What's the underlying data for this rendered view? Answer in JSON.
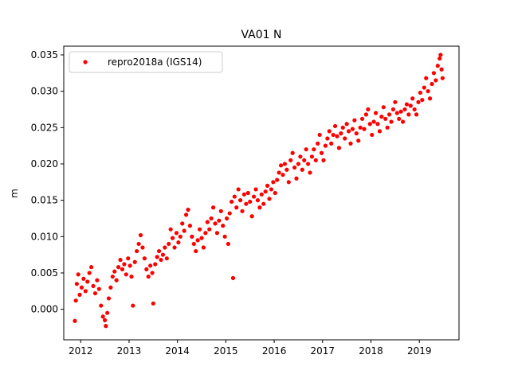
{
  "chart_data": {
    "type": "scatter",
    "title": "VA01 N",
    "xlabel": "",
    "ylabel": "m",
    "xlim": [
      2011.65,
      2019.82
    ],
    "ylim": [
      -0.0042,
      0.0362
    ],
    "xticks": [
      2012,
      2013,
      2014,
      2015,
      2016,
      2017,
      2018,
      2019
    ],
    "xtick_labels": [
      "2012",
      "2013",
      "2014",
      "2015",
      "2016",
      "2017",
      "2018",
      "2019"
    ],
    "yticks": [
      0.0,
      0.005,
      0.01,
      0.015,
      0.02,
      0.025,
      0.03,
      0.035
    ],
    "ytick_labels": [
      "0.000",
      "0.005",
      "0.010",
      "0.015",
      "0.020",
      "0.025",
      "0.030",
      "0.035"
    ],
    "grid": false,
    "legend": {
      "location": "upper-left"
    },
    "series": [
      {
        "name": "repro2018a (IGS14)",
        "color": "#ff0000",
        "marker": "circle",
        "points": [
          [
            2011.88,
            -0.0016
          ],
          [
            2011.9,
            0.0012
          ],
          [
            2011.92,
            0.0035
          ],
          [
            2011.95,
            0.0048
          ],
          [
            2011.98,
            0.002
          ],
          [
            2012.02,
            0.003
          ],
          [
            2012.06,
            0.0042
          ],
          [
            2012.1,
            0.0025
          ],
          [
            2012.14,
            0.0038
          ],
          [
            2012.18,
            0.005
          ],
          [
            2012.22,
            0.0058
          ],
          [
            2012.26,
            0.0032
          ],
          [
            2012.3,
            0.0022
          ],
          [
            2012.34,
            0.004
          ],
          [
            2012.38,
            0.0028
          ],
          [
            2012.42,
            0.0005
          ],
          [
            2012.46,
            -0.001
          ],
          [
            2012.5,
            -0.0015
          ],
          [
            2012.52,
            -0.0023
          ],
          [
            2012.55,
            -0.0005
          ],
          [
            2012.58,
            0.0015
          ],
          [
            2012.62,
            0.003
          ],
          [
            2012.66,
            0.0045
          ],
          [
            2012.7,
            0.0052
          ],
          [
            2012.74,
            0.004
          ],
          [
            2012.78,
            0.0058
          ],
          [
            2012.82,
            0.0068
          ],
          [
            2012.86,
            0.0055
          ],
          [
            2012.9,
            0.0062
          ],
          [
            2012.94,
            0.0048
          ],
          [
            2012.98,
            0.007
          ],
          [
            2013.02,
            0.006
          ],
          [
            2013.05,
            0.0045
          ],
          [
            2013.08,
            0.0005
          ],
          [
            2013.12,
            0.0065
          ],
          [
            2013.16,
            0.008
          ],
          [
            2013.2,
            0.009
          ],
          [
            2013.24,
            0.0102
          ],
          [
            2013.28,
            0.0085
          ],
          [
            2013.32,
            0.007
          ],
          [
            2013.36,
            0.0055
          ],
          [
            2013.4,
            0.0045
          ],
          [
            2013.44,
            0.006
          ],
          [
            2013.48,
            0.005
          ],
          [
            2013.5,
            0.0008
          ],
          [
            2013.54,
            0.0062
          ],
          [
            2013.58,
            0.0072
          ],
          [
            2013.62,
            0.008
          ],
          [
            2013.66,
            0.0068
          ],
          [
            2013.7,
            0.0075
          ],
          [
            2013.74,
            0.0085
          ],
          [
            2013.78,
            0.007
          ],
          [
            2013.82,
            0.009
          ],
          [
            2013.86,
            0.011
          ],
          [
            2013.9,
            0.0098
          ],
          [
            2013.94,
            0.0085
          ],
          [
            2013.98,
            0.0105
          ],
          [
            2014.02,
            0.0092
          ],
          [
            2014.06,
            0.01
          ],
          [
            2014.1,
            0.0118
          ],
          [
            2014.14,
            0.0108
          ],
          [
            2014.18,
            0.013
          ],
          [
            2014.22,
            0.0137
          ],
          [
            2014.26,
            0.0115
          ],
          [
            2014.3,
            0.01
          ],
          [
            2014.34,
            0.009
          ],
          [
            2014.38,
            0.008
          ],
          [
            2014.42,
            0.0095
          ],
          [
            2014.46,
            0.011
          ],
          [
            2014.5,
            0.0098
          ],
          [
            2014.54,
            0.0085
          ],
          [
            2014.58,
            0.0105
          ],
          [
            2014.62,
            0.012
          ],
          [
            2014.66,
            0.011
          ],
          [
            2014.7,
            0.0125
          ],
          [
            2014.74,
            0.014
          ],
          [
            2014.78,
            0.0118
          ],
          [
            2014.82,
            0.0105
          ],
          [
            2014.86,
            0.0122
          ],
          [
            2014.9,
            0.0135
          ],
          [
            2014.94,
            0.0115
          ],
          [
            2014.98,
            0.01
          ],
          [
            2015.02,
            0.0125
          ],
          [
            2015.05,
            0.009
          ],
          [
            2015.08,
            0.0132
          ],
          [
            2015.12,
            0.0148
          ],
          [
            2015.15,
            0.0043
          ],
          [
            2015.18,
            0.0155
          ],
          [
            2015.22,
            0.014
          ],
          [
            2015.26,
            0.0165
          ],
          [
            2015.3,
            0.015
          ],
          [
            2015.34,
            0.0135
          ],
          [
            2015.38,
            0.0158
          ],
          [
            2015.42,
            0.0145
          ],
          [
            2015.46,
            0.016
          ],
          [
            2015.5,
            0.0148
          ],
          [
            2015.54,
            0.0128
          ],
          [
            2015.58,
            0.0155
          ],
          [
            2015.62,
            0.0165
          ],
          [
            2015.66,
            0.015
          ],
          [
            2015.7,
            0.014
          ],
          [
            2015.74,
            0.0158
          ],
          [
            2015.78,
            0.0145
          ],
          [
            2015.82,
            0.0162
          ],
          [
            2015.86,
            0.017
          ],
          [
            2015.9,
            0.0152
          ],
          [
            2015.94,
            0.0165
          ],
          [
            2015.98,
            0.0175
          ],
          [
            2016.02,
            0.016
          ],
          [
            2016.06,
            0.0178
          ],
          [
            2016.1,
            0.0188
          ],
          [
            2016.14,
            0.0198
          ],
          [
            2016.18,
            0.0185
          ],
          [
            2016.22,
            0.02
          ],
          [
            2016.26,
            0.0192
          ],
          [
            2016.3,
            0.0175
          ],
          [
            2016.34,
            0.0205
          ],
          [
            2016.38,
            0.0215
          ],
          [
            2016.42,
            0.0195
          ],
          [
            2016.46,
            0.018
          ],
          [
            2016.5,
            0.02
          ],
          [
            2016.54,
            0.021
          ],
          [
            2016.58,
            0.0192
          ],
          [
            2016.62,
            0.0205
          ],
          [
            2016.66,
            0.022
          ],
          [
            2016.7,
            0.02
          ],
          [
            2016.74,
            0.0188
          ],
          [
            2016.78,
            0.021
          ],
          [
            2016.82,
            0.022
          ],
          [
            2016.86,
            0.0205
          ],
          [
            2016.9,
            0.0228
          ],
          [
            2016.94,
            0.024
          ],
          [
            2016.98,
            0.0215
          ],
          [
            2017.02,
            0.0205
          ],
          [
            2017.06,
            0.0225
          ],
          [
            2017.1,
            0.0235
          ],
          [
            2017.14,
            0.0245
          ],
          [
            2017.18,
            0.0228
          ],
          [
            2017.22,
            0.024
          ],
          [
            2017.26,
            0.0252
          ],
          [
            2017.3,
            0.0238
          ],
          [
            2017.34,
            0.0222
          ],
          [
            2017.38,
            0.0242
          ],
          [
            2017.42,
            0.025
          ],
          [
            2017.46,
            0.0235
          ],
          [
            2017.5,
            0.0255
          ],
          [
            2017.54,
            0.0245
          ],
          [
            2017.58,
            0.0228
          ],
          [
            2017.62,
            0.0248
          ],
          [
            2017.66,
            0.026
          ],
          [
            2017.7,
            0.0242
          ],
          [
            2017.74,
            0.0232
          ],
          [
            2017.78,
            0.025
          ],
          [
            2017.82,
            0.0262
          ],
          [
            2017.86,
            0.0248
          ],
          [
            2017.9,
            0.0268
          ],
          [
            2017.94,
            0.0275
          ],
          [
            2017.98,
            0.0255
          ],
          [
            2018.02,
            0.024
          ],
          [
            2018.06,
            0.0258
          ],
          [
            2018.1,
            0.027
          ],
          [
            2018.14,
            0.0255
          ],
          [
            2018.18,
            0.0245
          ],
          [
            2018.22,
            0.0265
          ],
          [
            2018.26,
            0.0278
          ],
          [
            2018.3,
            0.0262
          ],
          [
            2018.34,
            0.025
          ],
          [
            2018.38,
            0.0268
          ],
          [
            2018.42,
            0.0258
          ],
          [
            2018.46,
            0.0275
          ],
          [
            2018.5,
            0.0285
          ],
          [
            2018.54,
            0.027
          ],
          [
            2018.58,
            0.0262
          ],
          [
            2018.62,
            0.0272
          ],
          [
            2018.66,
            0.0258
          ],
          [
            2018.7,
            0.0275
          ],
          [
            2018.74,
            0.0282
          ],
          [
            2018.78,
            0.0268
          ],
          [
            2018.82,
            0.028
          ],
          [
            2018.86,
            0.029
          ],
          [
            2018.9,
            0.0275
          ],
          [
            2018.94,
            0.0268
          ],
          [
            2018.98,
            0.0285
          ],
          [
            2019.02,
            0.0298
          ],
          [
            2019.06,
            0.0288
          ],
          [
            2019.1,
            0.0305
          ],
          [
            2019.14,
            0.0318
          ],
          [
            2019.18,
            0.03
          ],
          [
            2019.22,
            0.029
          ],
          [
            2019.26,
            0.031
          ],
          [
            2019.3,
            0.0325
          ],
          [
            2019.34,
            0.0315
          ],
          [
            2019.38,
            0.0335
          ],
          [
            2019.42,
            0.0345
          ],
          [
            2019.44,
            0.035
          ],
          [
            2019.46,
            0.033
          ],
          [
            2019.48,
            0.0318
          ]
        ]
      }
    ]
  }
}
